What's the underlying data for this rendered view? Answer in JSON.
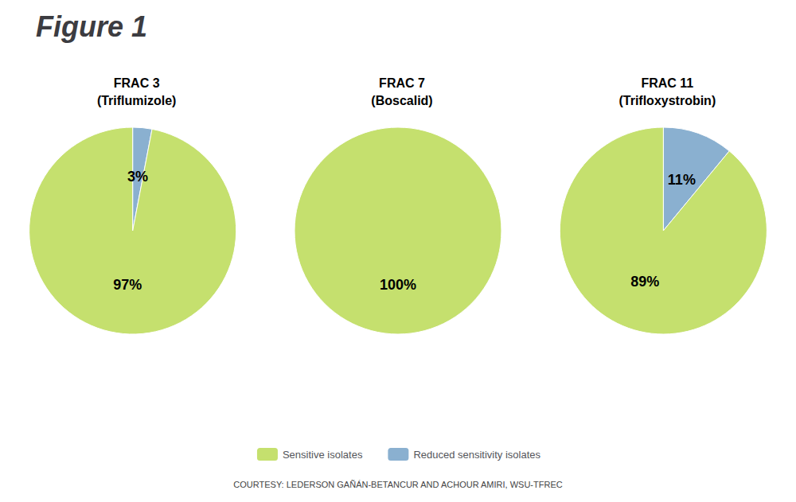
{
  "title": "Figure 1",
  "caption": "COURTESY: LEDERSON GAÑÁN-BETANCUR AND ACHOUR AMIRI, WSU-TFREC",
  "legend": "bottom",
  "chart_data": [
    {
      "type": "pie",
      "title": "FRAC 3\n(Triflumizole)",
      "categories": [
        "Reduced sensitivity isolates",
        "Sensitive isolates"
      ],
      "values": [
        3,
        97
      ],
      "value_labels": [
        "3%",
        "97%"
      ],
      "colors": [
        "#8ab0d0",
        "#c5e06e"
      ],
      "data_labels": true
    },
    {
      "type": "pie",
      "title": "FRAC 7\n(Boscalid)",
      "categories": [
        "Sensitive isolates"
      ],
      "values": [
        100
      ],
      "value_labels": [
        "100%"
      ],
      "colors": [
        "#c5e06e"
      ],
      "data_labels": true
    },
    {
      "type": "pie",
      "title": "FRAC 11\n(Trifloxystrobin)",
      "categories": [
        "Reduced sensitivity isolates",
        "Sensitive isolates"
      ],
      "values": [
        11,
        89
      ],
      "value_labels": [
        "11%",
        "89%"
      ],
      "colors": [
        "#8ab0d0",
        "#c5e06e"
      ],
      "data_labels": true
    }
  ]
}
